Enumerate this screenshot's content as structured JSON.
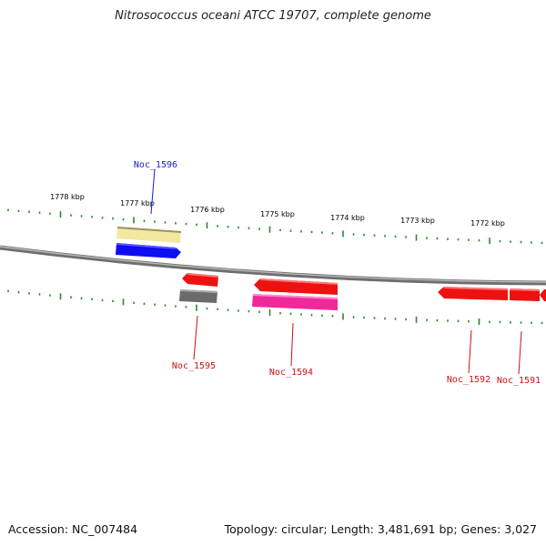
{
  "title": "Nitrosococcus oceani ATCC 19707, complete genome",
  "footer": {
    "accession": "Accession: NC_007484",
    "summary": "Topology: circular; Length: 3,481,691 bp; Genes: 3,027"
  },
  "colors": {
    "backbone": "#8a8a8a",
    "tick": "#2a8a2a",
    "label_blue": "#1a1acc",
    "label_red": "#cc1111",
    "gene_red": "#ee1111",
    "gene_blue": "#0d0df0",
    "gene_yellow": "#f2e8a0",
    "gene_gray": "#6a6a6a",
    "gene_pink": "#f0289a"
  },
  "scale_labels": [
    "1778 kbp",
    "1777 kbp",
    "1776 kbp",
    "1775 kbp",
    "1774 kbp",
    "1773 kbp",
    "1772 kbp"
  ],
  "gene_labels": [
    {
      "name": "Noc_1596",
      "color": "blue"
    },
    {
      "name": "Noc_1595",
      "color": "red"
    },
    {
      "name": "Noc_1594",
      "color": "red"
    },
    {
      "name": "Noc_1592",
      "color": "red"
    },
    {
      "name": "Noc_1591",
      "color": "red"
    }
  ]
}
